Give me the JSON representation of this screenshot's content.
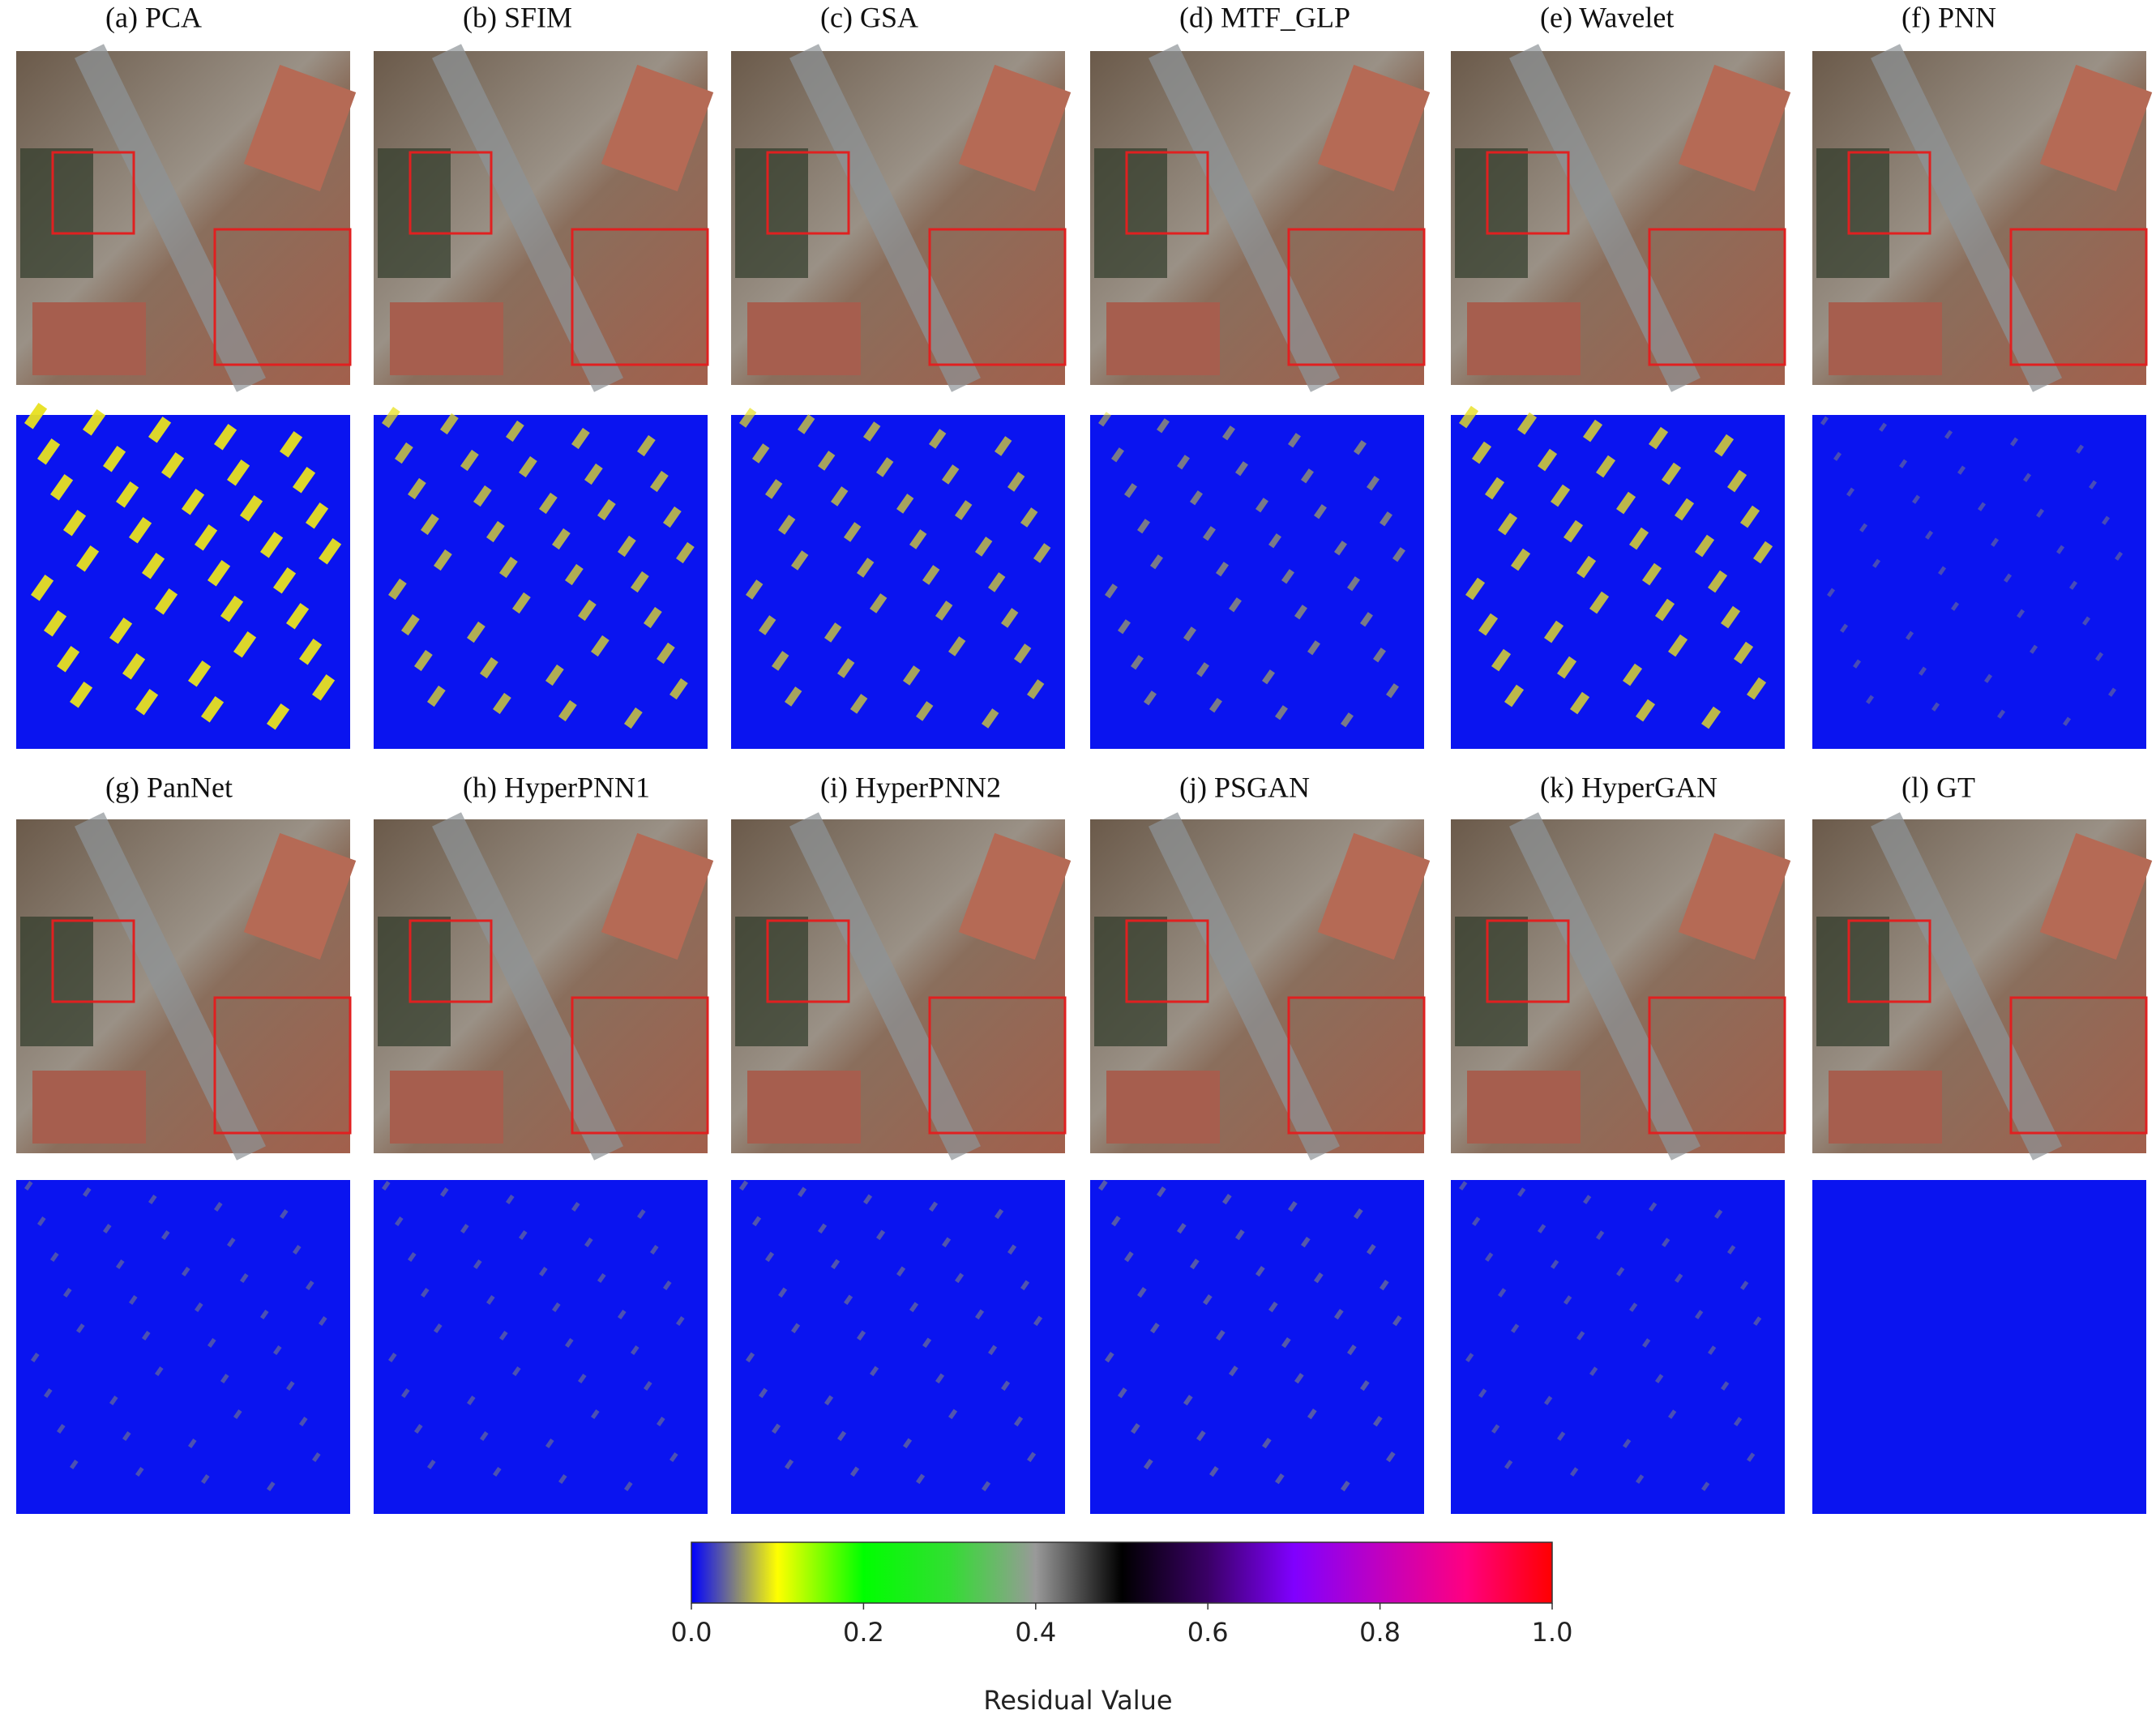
{
  "panels": [
    {
      "label": "(a) PCA"
    },
    {
      "label": "(b) SFIM"
    },
    {
      "label": "(c) GSA"
    },
    {
      "label": "(d) MTF_GLP"
    },
    {
      "label": "(e) Wavelet"
    },
    {
      "label": "(f) PNN"
    },
    {
      "label": "(g) PanNet"
    },
    {
      "label": "(h) HyperPNN1"
    },
    {
      "label": "(i) HyperPNN2"
    },
    {
      "label": "(j) PSGAN"
    },
    {
      "label": "(k) HyperGAN"
    },
    {
      "label": "(l) GT"
    }
  ],
  "colorbar": {
    "label": "Residual Value",
    "lim": [
      0,
      1
    ],
    "ticks": [
      {
        "value": 0,
        "label": "0.0"
      },
      {
        "value": 0.2,
        "label": "0.2"
      },
      {
        "value": 0.4,
        "label": "0.4"
      },
      {
        "value": 0.6,
        "label": "0.6"
      },
      {
        "value": 0.8,
        "label": "0.8"
      },
      {
        "value": 1,
        "label": "1.0"
      }
    ],
    "colors": [
      "#0000ff",
      "#ffff00",
      "#00ff00",
      "#33dd33",
      "#999999",
      "#000000",
      "#3a0066",
      "#8000ff",
      "#c000c0",
      "#ff0080",
      "#ff0000"
    ]
  }
}
